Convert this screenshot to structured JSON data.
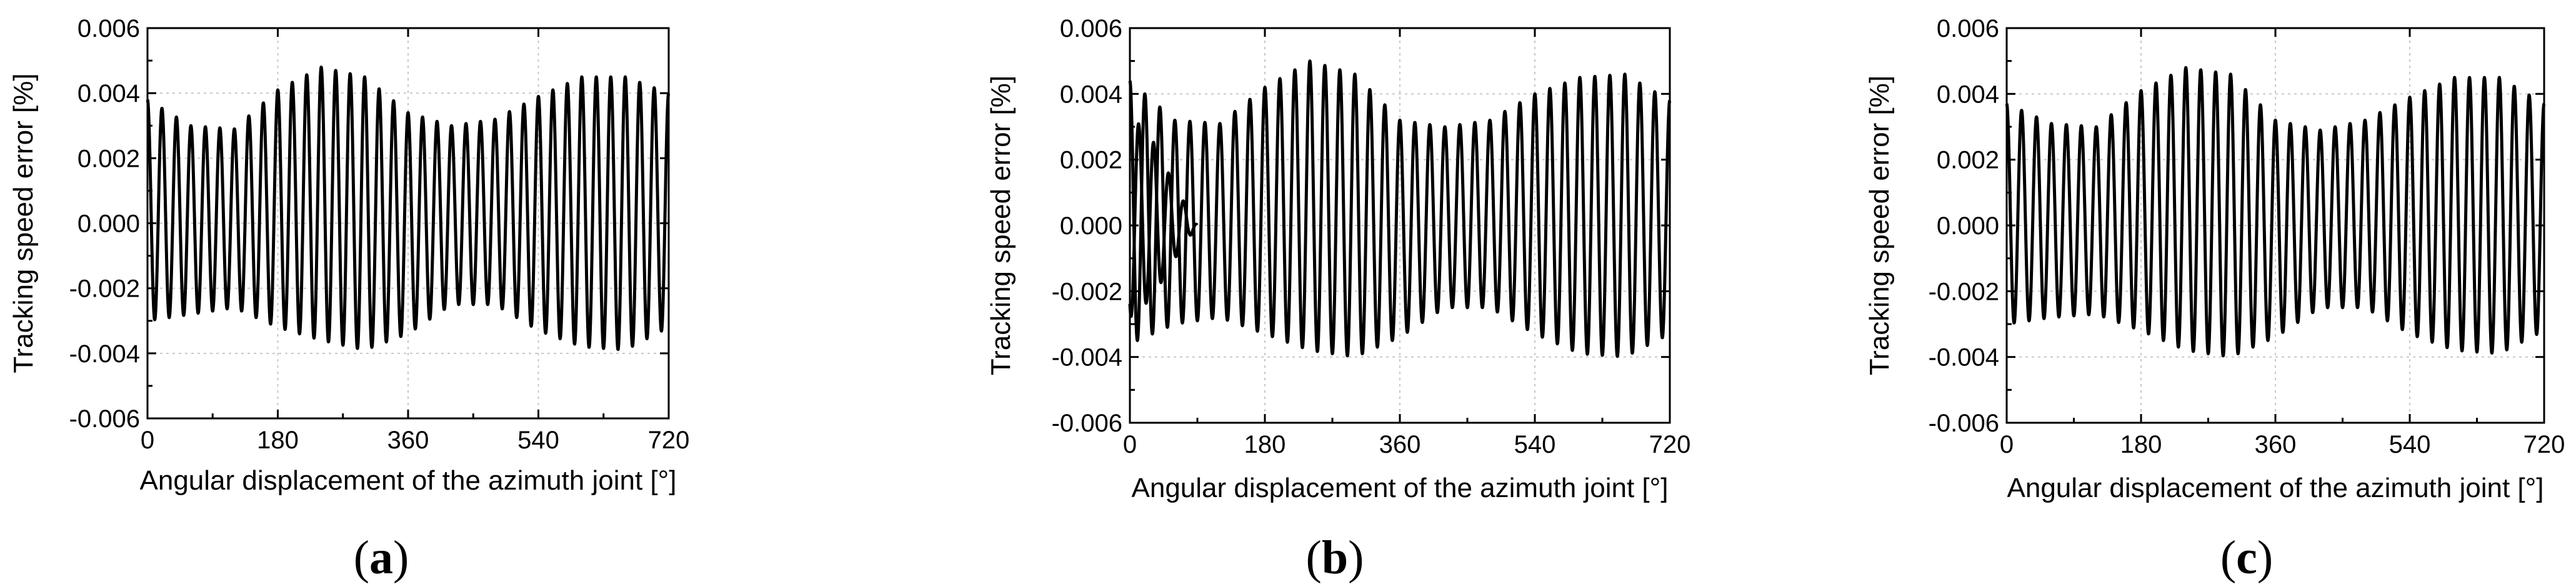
{
  "chart_data": [
    {
      "type": "line",
      "panel_label": "a",
      "xlabel": "Angular displacement of the azimuth joint [°]",
      "ylabel": "Tracking speed error [%]",
      "xlim": [
        0,
        720
      ],
      "ylim": [
        -0.006,
        0.006
      ],
      "xticks": [
        "0",
        "180",
        "360",
        "540",
        "720"
      ],
      "yticks": [
        "-0.006",
        "-0.004",
        "-0.002",
        "0.000",
        "0.002",
        "0.004",
        "0.006"
      ],
      "grid": true,
      "series": [
        {
          "oscillation": {
            "cycles": 36,
            "phase_deg": 0
          },
          "envelope": {
            "x": [
              0,
              60,
              120,
              180,
              240,
              300,
              360,
              420,
              480,
              540,
              600,
              660,
              720
            ],
            "upper": [
              0.0038,
              0.003,
              0.0029,
              0.0041,
              0.0048,
              0.0045,
              0.0034,
              0.003,
              0.0032,
              0.0039,
              0.0045,
              0.0045,
              0.004
            ],
            "lower": [
              -0.003,
              -0.0028,
              -0.0026,
              -0.0032,
              -0.0036,
              -0.0039,
              -0.0034,
              -0.0025,
              -0.0025,
              -0.0033,
              -0.0038,
              -0.0039,
              -0.0032
            ]
          }
        }
      ]
    },
    {
      "type": "line",
      "panel_label": "b",
      "xlabel": "Angular displacement of the azimuth joint [°]",
      "ylabel": "Tracking speed error [%]",
      "xlim": [
        0,
        720
      ],
      "ylim": [
        -0.006,
        0.006
      ],
      "xticks": [
        "0",
        "180",
        "360",
        "540",
        "720"
      ],
      "yticks": [
        "-0.006",
        "-0.004",
        "-0.002",
        "0.000",
        "0.002",
        "0.004",
        "0.006"
      ],
      "grid": true,
      "series": [
        {
          "oscillation": {
            "cycles": 36,
            "phase_deg": 0
          },
          "envelope": {
            "x": [
              0,
              60,
              120,
              180,
              240,
              300,
              360,
              420,
              480,
              540,
              600,
              660,
              720
            ],
            "upper": [
              0.0044,
              0.0032,
              0.0031,
              0.0042,
              0.005,
              0.0046,
              0.0032,
              0.003,
              0.0032,
              0.004,
              0.0045,
              0.0046,
              0.0038
            ],
            "lower": [
              -0.0036,
              -0.003,
              -0.0028,
              -0.0033,
              -0.0038,
              -0.004,
              -0.0034,
              -0.0025,
              -0.0025,
              -0.0033,
              -0.0039,
              -0.004,
              -0.0033
            ]
          }
        },
        {
          "oscillation": {
            "cycles": 36,
            "phase_deg": 150
          },
          "envelope": {
            "x": [
              0,
              30,
              60,
              90,
              720
            ],
            "upper": [
              0.0034,
              0.0026,
              0.0012,
              0,
              0
            ],
            "lower": [
              -0.0028,
              -0.0022,
              -0.001,
              0,
              0
            ]
          }
        }
      ]
    },
    {
      "type": "line",
      "panel_label": "c",
      "xlabel": "Angular displacement of the azimuth joint [°]",
      "ylabel": "Tracking speed error [%]",
      "xlim": [
        0,
        720
      ],
      "ylim": [
        -0.006,
        0.006
      ],
      "xticks": [
        "0",
        "180",
        "360",
        "540",
        "720"
      ],
      "yticks": [
        "-0.006",
        "-0.004",
        "-0.002",
        "0.000",
        "0.002",
        "0.004",
        "0.006"
      ],
      "grid": true,
      "series": [
        {
          "oscillation": {
            "cycles": 36,
            "phase_deg": 0
          },
          "envelope": {
            "x": [
              0,
              60,
              120,
              180,
              240,
              300,
              360,
              420,
              480,
              540,
              600,
              660,
              720
            ],
            "upper": [
              0.0037,
              0.0031,
              0.003,
              0.0041,
              0.0048,
              0.0046,
              0.0032,
              0.0029,
              0.0032,
              0.0039,
              0.0045,
              0.0045,
              0.0037
            ],
            "lower": [
              -0.003,
              -0.0028,
              -0.0027,
              -0.0032,
              -0.0038,
              -0.004,
              -0.0034,
              -0.0025,
              -0.0025,
              -0.0033,
              -0.0038,
              -0.0039,
              -0.0032
            ]
          }
        }
      ]
    }
  ]
}
